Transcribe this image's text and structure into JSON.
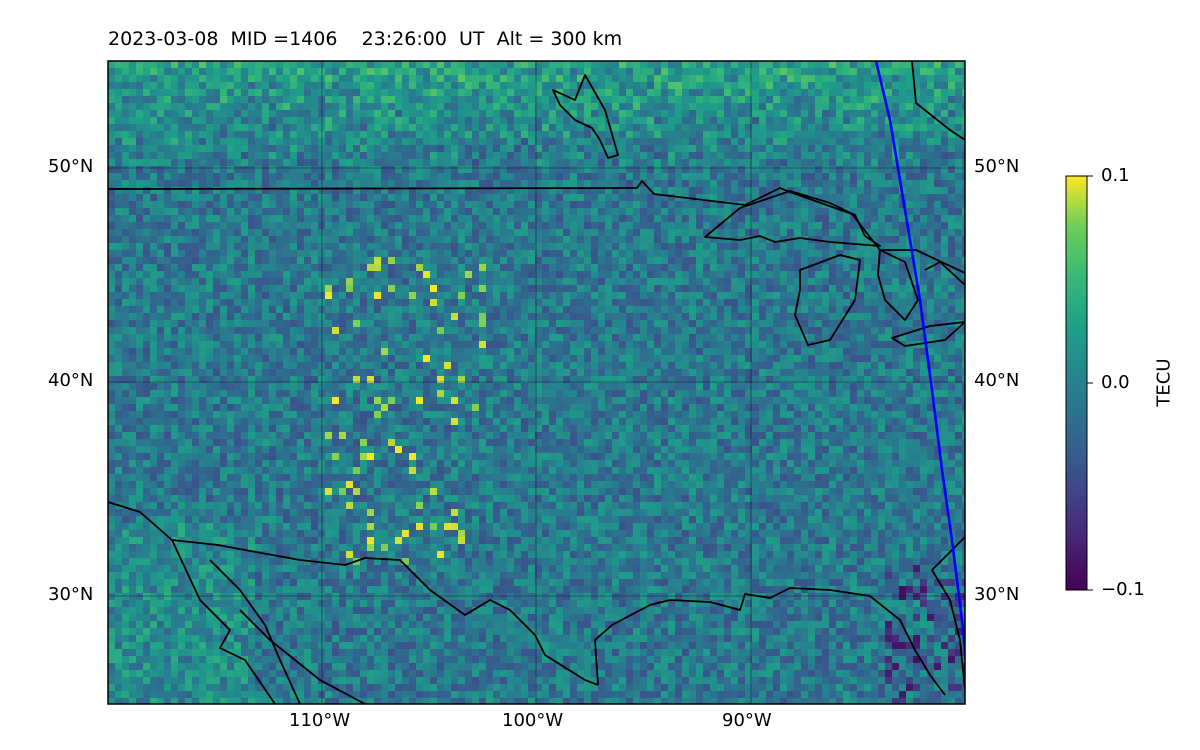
{
  "title": "2023-03-08  MID =1406    23:26:00  UT  Alt = 300 km",
  "lat_ticks": [
    "50°N",
    "40°N",
    "30°N"
  ],
  "lon_ticks": [
    "110°W",
    "100°W",
    "90°W"
  ],
  "colorbar": {
    "label": "TECU",
    "ticks": [
      "0.1",
      "0.0",
      "−0.1"
    ],
    "colormap": "viridis",
    "range": [
      -0.1,
      0.1
    ]
  },
  "map": {
    "projection": "plate carree",
    "lon_range": [
      -120,
      -80
    ],
    "lat_range": [
      25,
      55
    ],
    "gridlines": true,
    "coastline_color": "#000000",
    "track_color": "#0000ff"
  }
}
